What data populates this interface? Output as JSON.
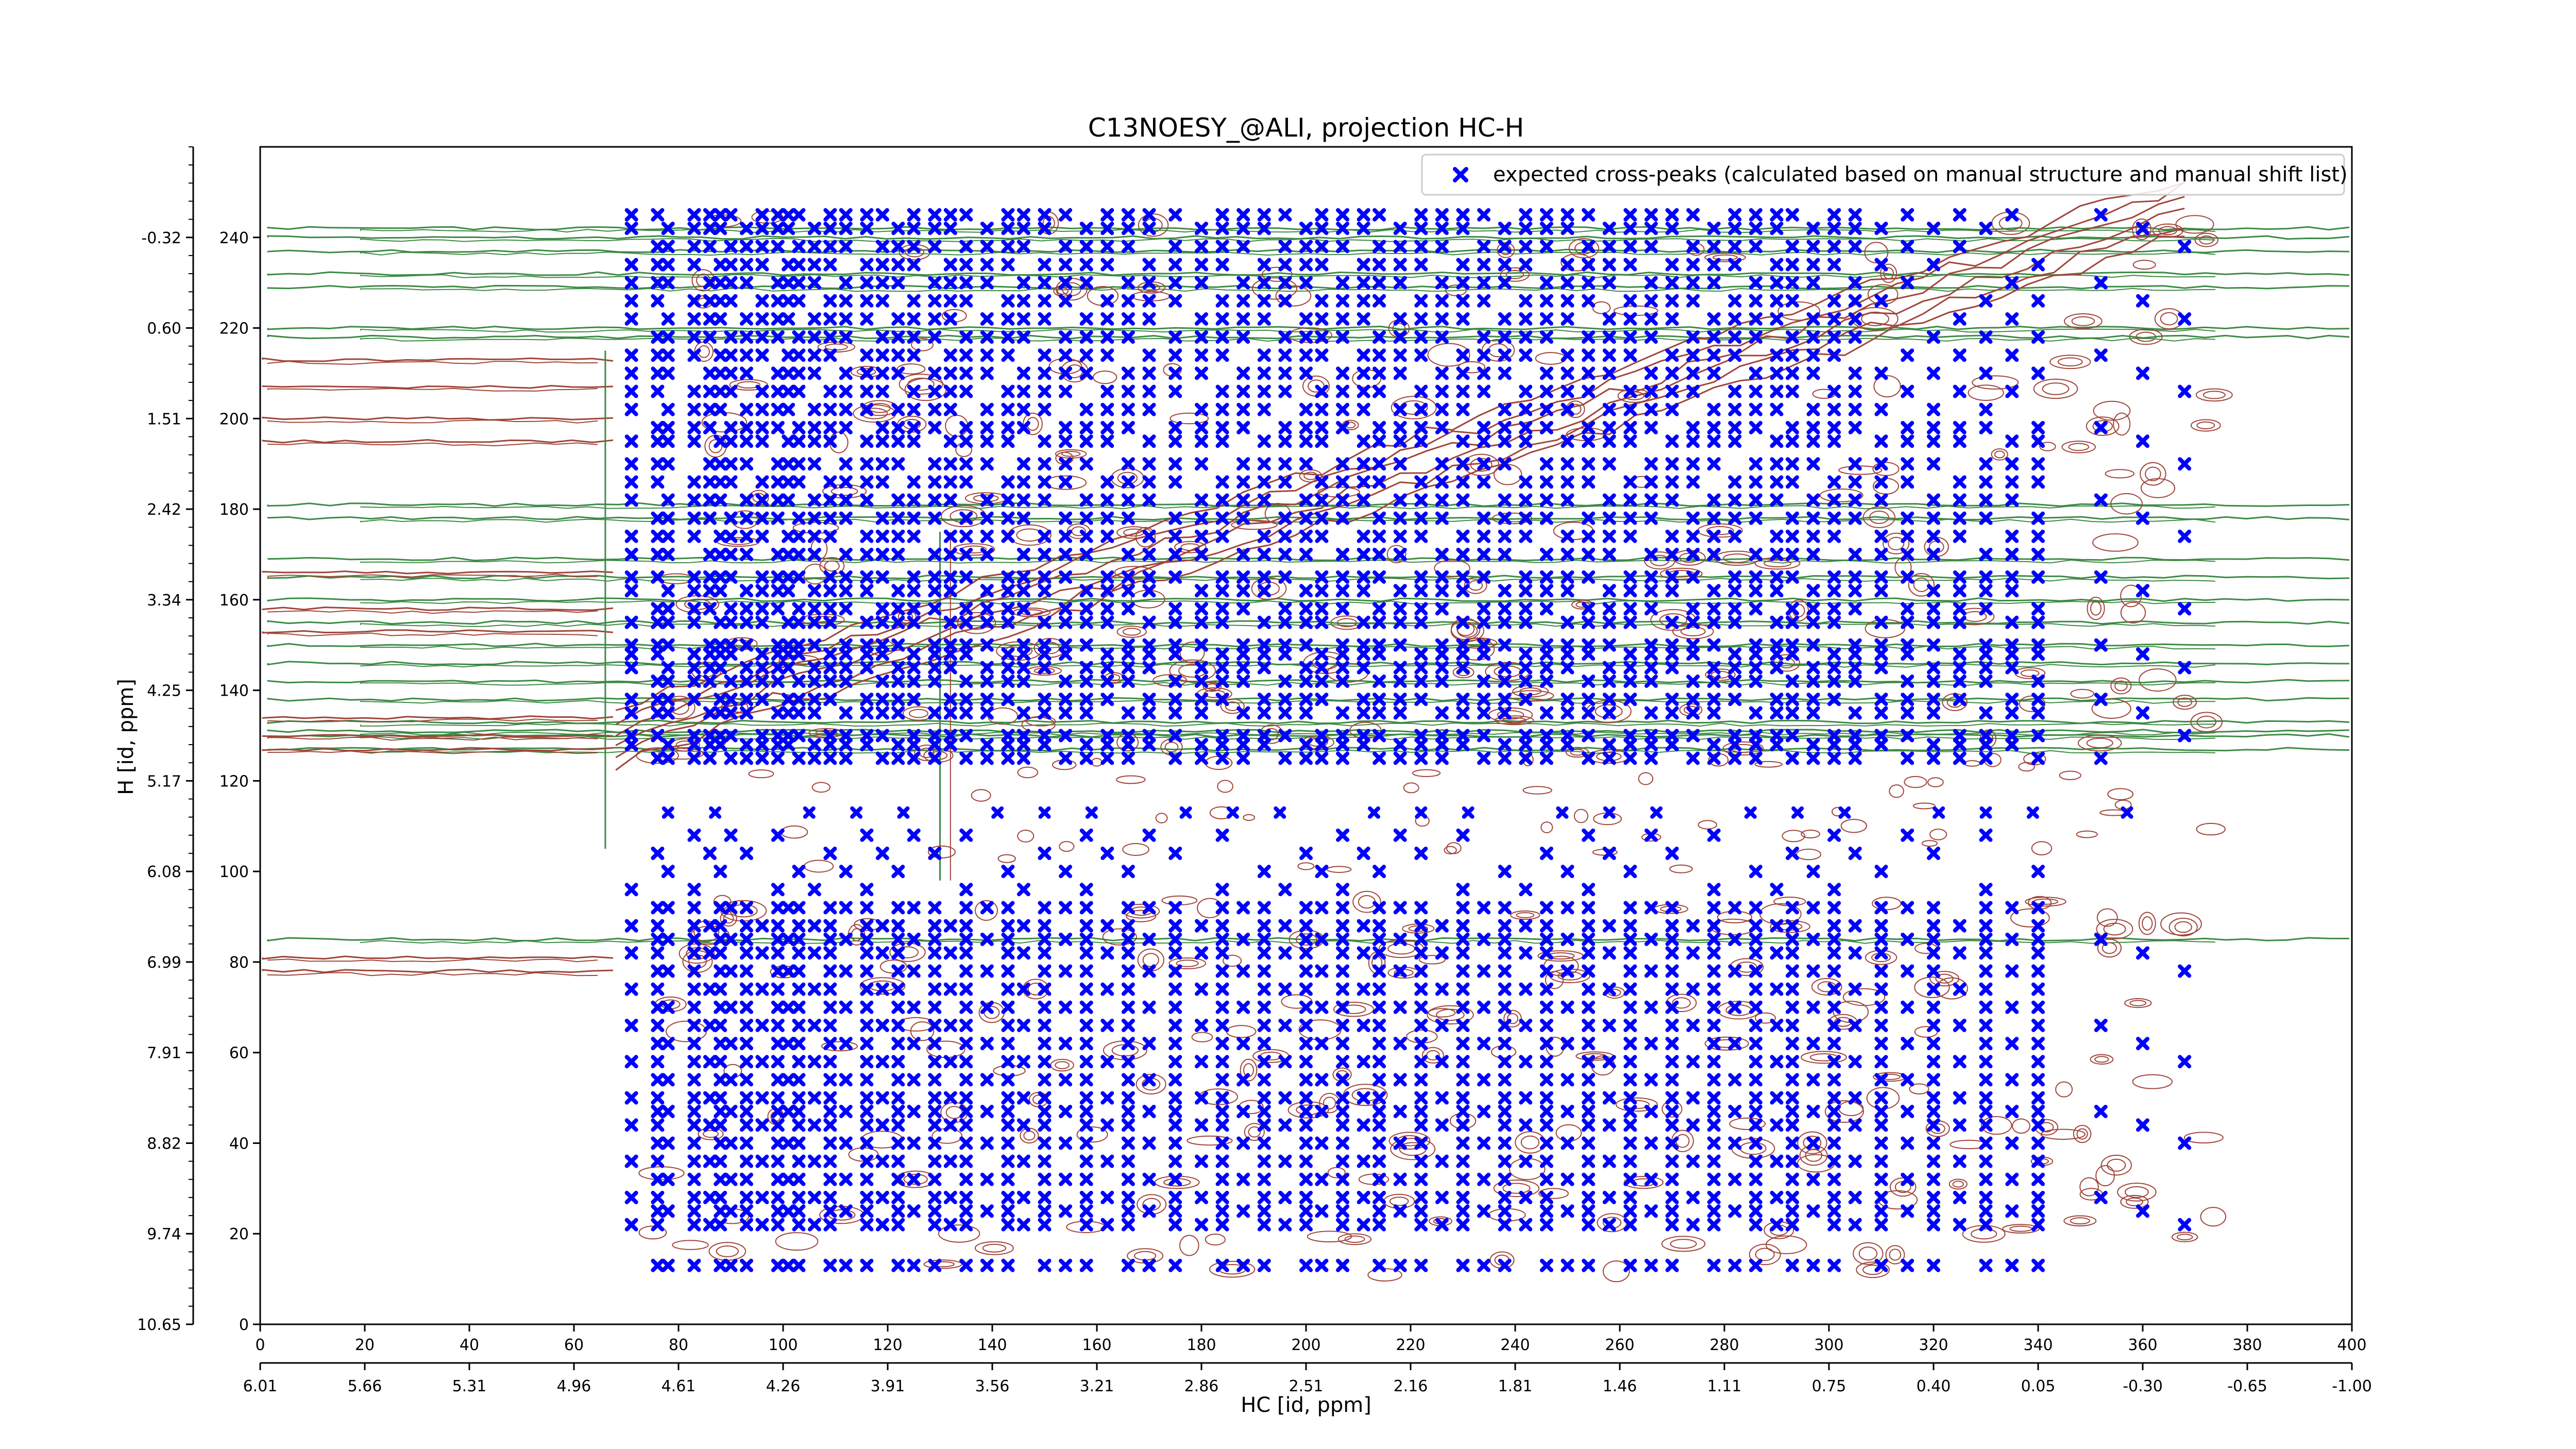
{
  "chart_data": {
    "type": "scatter",
    "title": "C13NOESY_@ALI, projection HC-H",
    "xlabel": "HC [id, ppm]",
    "ylabel": "H [id, ppm]",
    "xlim": [
      0,
      400
    ],
    "ylim": [
      0,
      260
    ],
    "x_ticks": [
      "0",
      "20",
      "40",
      "60",
      "80",
      "100",
      "120",
      "140",
      "160",
      "180",
      "200",
      "220",
      "240",
      "260",
      "280",
      "300",
      "320",
      "340",
      "360",
      "380",
      "400"
    ],
    "x_secondary_ticks": [
      "6.01",
      "5.66",
      "5.31",
      "4.96",
      "4.61",
      "4.26",
      "3.91",
      "3.56",
      "3.21",
      "2.86",
      "2.51",
      "2.16",
      "1.81",
      "1.46",
      "1.11",
      "0.75",
      "0.40",
      "0.05",
      "-0.30",
      "-0.65",
      "-1.00"
    ],
    "y_ticks": [
      "0",
      "20",
      "40",
      "60",
      "80",
      "100",
      "120",
      "140",
      "160",
      "180",
      "200",
      "220",
      "240"
    ],
    "y_secondary_ticks": [
      "10.65",
      "9.74",
      "8.82",
      "7.91",
      "6.99",
      "6.08",
      "5.17",
      "4.25",
      "3.34",
      "2.42",
      "1.51",
      "0.60",
      "-0.32"
    ],
    "legend": {
      "position": "upper-right",
      "entries": [
        "expected cross-peaks (calculated based on manual structure and manual shift list)"
      ]
    },
    "series": [
      {
        "name": "expected cross-peaks (calculated based on manual structure and manual shift list)",
        "marker": "x-filled",
        "color": "#0000ff",
        "x_columns": [
          71,
          76,
          78,
          83,
          86,
          88,
          90,
          93,
          96,
          99,
          101,
          103,
          106,
          109,
          112,
          116,
          119,
          122,
          125,
          129,
          132,
          135,
          139,
          143,
          146,
          150,
          154,
          158,
          162,
          166,
          170,
          175,
          180,
          184,
          188,
          192,
          196,
          200,
          203,
          207,
          211,
          214,
          218,
          222,
          226,
          230,
          234,
          238,
          242,
          246,
          250,
          254,
          258,
          262,
          266,
          270,
          274,
          278,
          282,
          286,
          290,
          293,
          297,
          301,
          305,
          310,
          315,
          320,
          325,
          330,
          335,
          340,
          352,
          360,
          368
        ],
        "y_rows_upper": [
          125,
          128,
          130,
          135,
          138,
          142,
          145,
          148,
          150,
          155,
          158,
          162,
          165,
          170,
          174,
          178,
          182,
          186,
          190,
          195,
          198,
          202,
          206,
          210,
          214,
          218,
          222,
          226,
          230,
          234,
          238,
          242,
          245
        ],
        "y_rows_lower": [
          13,
          22,
          25,
          28,
          32,
          36,
          40,
          44,
          47,
          50,
          54,
          58,
          62,
          66,
          70,
          74,
          78,
          82,
          85,
          88,
          92,
          96,
          100,
          104,
          108
        ]
      }
    ],
    "contours": {
      "positive_color": "#a0453a",
      "negative_color": "#3d8a45"
    }
  }
}
